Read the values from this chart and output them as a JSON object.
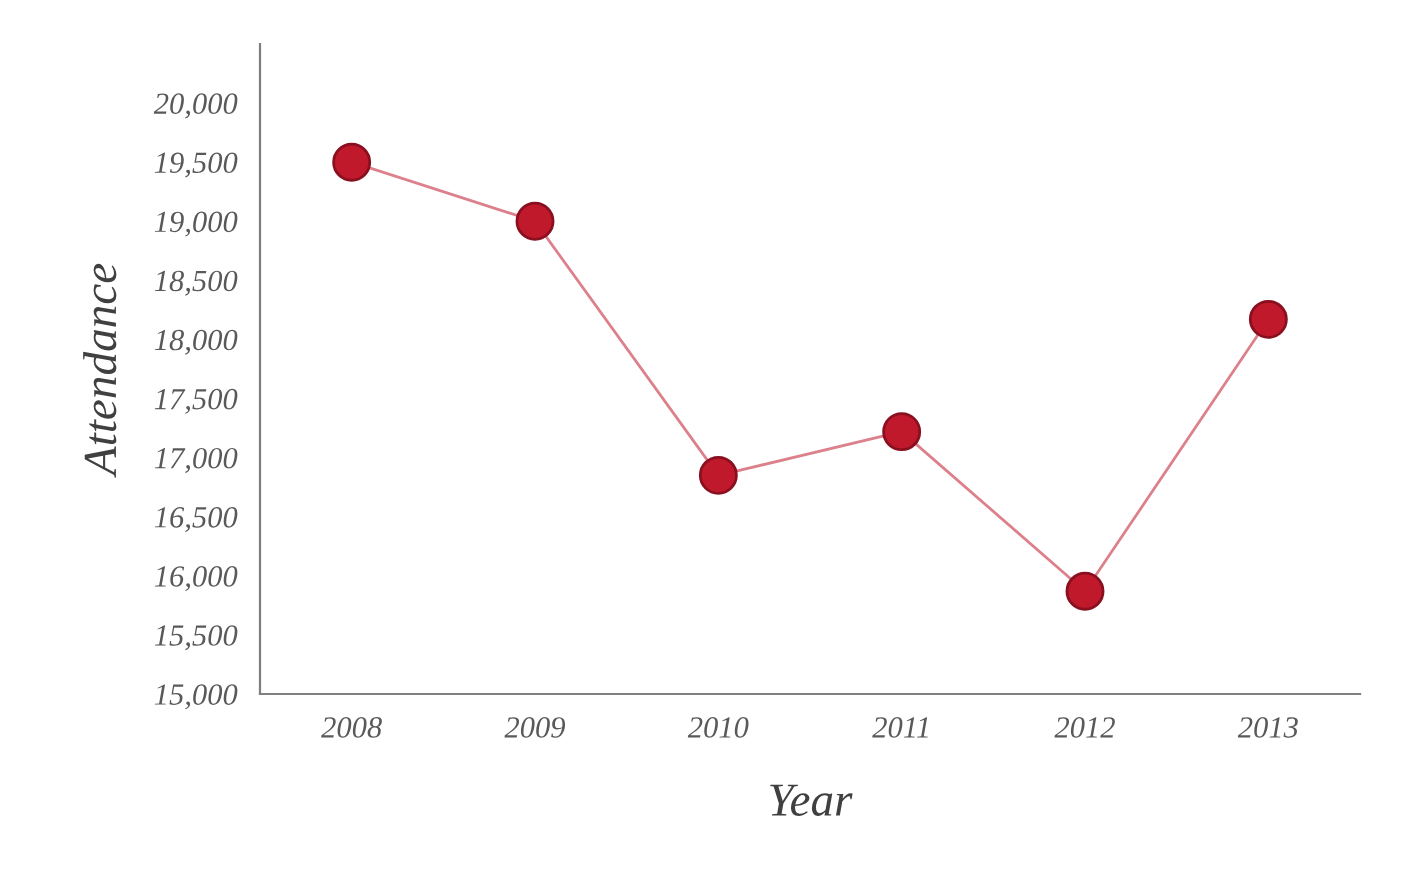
{
  "chart_data": {
    "type": "line",
    "xlabel": "Year",
    "ylabel": "Attendance",
    "categories": [
      "2008",
      "2009",
      "2010",
      "2011",
      "2012",
      "2013"
    ],
    "series": [
      {
        "color": "#c0192c",
        "values": [
          19500,
          19000,
          16850,
          17220,
          15870,
          18170
        ]
      }
    ],
    "ylim": [
      15000,
      20500
    ],
    "yticks": [
      {
        "value": 15000,
        "label": "15,000"
      },
      {
        "value": 15500,
        "label": "15,500"
      },
      {
        "value": 16000,
        "label": "16,000"
      },
      {
        "value": 16500,
        "label": "16,500"
      },
      {
        "value": 17000,
        "label": "17,000"
      },
      {
        "value": 17500,
        "label": "17,500"
      },
      {
        "value": 18000,
        "label": "18,000"
      },
      {
        "value": 18500,
        "label": "18,500"
      },
      {
        "value": 19000,
        "label": "19,000"
      },
      {
        "value": 19500,
        "label": "19,500"
      },
      {
        "value": 20000,
        "label": "20,000"
      }
    ],
    "marker": "circle",
    "line_style": "solid",
    "grid": false,
    "legend": false
  }
}
